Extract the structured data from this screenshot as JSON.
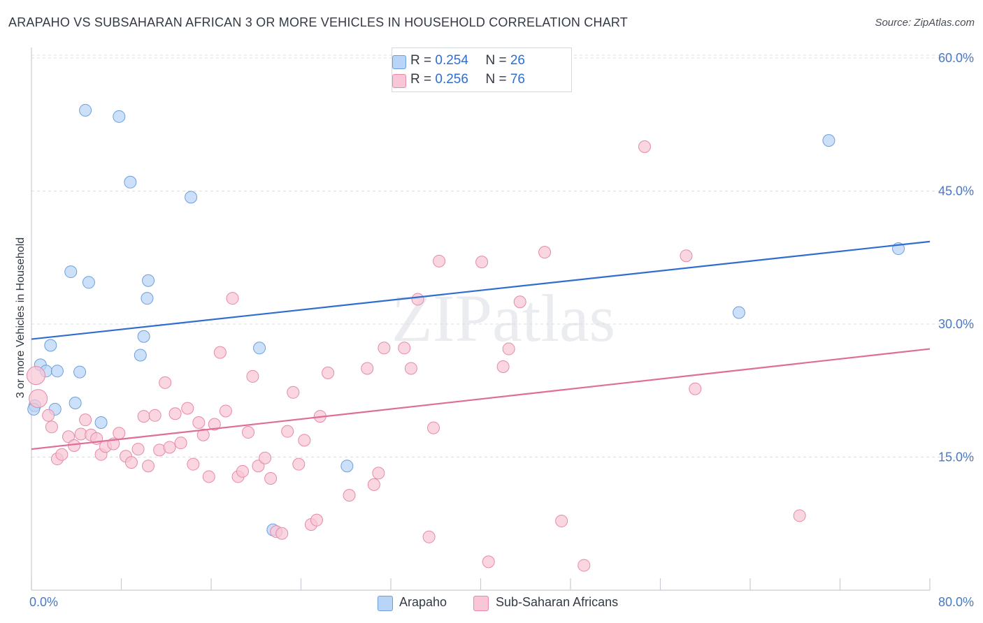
{
  "title": "ARAPAHO VS SUBSAHARAN AFRICAN 3 OR MORE VEHICLES IN HOUSEHOLD CORRELATION CHART",
  "source": "Source: ZipAtlas.com",
  "watermark": "ZIPatlas",
  "legend": {
    "rows": [
      {
        "r_label": "R = ",
        "r_value": "0.254",
        "n_label": "N = ",
        "n_value": "26"
      },
      {
        "r_label": "R = ",
        "r_value": "0.256",
        "n_label": "N = ",
        "n_value": "76"
      }
    ]
  },
  "colors": {
    "arapaho_fill": "#b8d4f6",
    "arapaho_stroke": "#6c9fdb",
    "arapaho_line": "#2f6dd1",
    "subsaharan_fill": "#f8c6d6",
    "subsaharan_stroke": "#e68aa8",
    "subsaharan_line": "#e06c98",
    "tick_text": "#4a78c2",
    "grid": "#dcdfe4"
  },
  "chart_data": {
    "type": "scatter",
    "title": "ARAPAHO VS SUBSAHARAN AFRICAN 3 OR MORE VEHICLES IN HOUSEHOLD CORRELATION CHART",
    "xlabel": "",
    "ylabel": "3 or more Vehicles in Household",
    "xlim": [
      0,
      80
    ],
    "ylim": [
      0,
      60
    ],
    "x_tick_labels": [
      "0.0%",
      "80.0%"
    ],
    "y_tick_values": [
      15,
      30,
      45,
      60
    ],
    "y_tick_labels": [
      "15.0%",
      "30.0%",
      "45.0%",
      "60.0%"
    ],
    "grid": true,
    "legend_position": "bottom",
    "series": [
      {
        "name": "Arapaho",
        "trend": {
          "x": [
            0,
            80
          ],
          "y": [
            28.3,
            39.3
          ]
        },
        "points": [
          {
            "x": 4.8,
            "y": 54.1
          },
          {
            "x": 7.8,
            "y": 53.4
          },
          {
            "x": 8.8,
            "y": 46.0
          },
          {
            "x": 14.2,
            "y": 44.3
          },
          {
            "x": 3.5,
            "y": 35.9
          },
          {
            "x": 5.1,
            "y": 34.7
          },
          {
            "x": 10.4,
            "y": 34.9
          },
          {
            "x": 10.3,
            "y": 32.9
          },
          {
            "x": 10.0,
            "y": 28.6
          },
          {
            "x": 1.7,
            "y": 27.6
          },
          {
            "x": 9.7,
            "y": 26.5
          },
          {
            "x": 20.3,
            "y": 27.3
          },
          {
            "x": 0.8,
            "y": 25.4
          },
          {
            "x": 1.3,
            "y": 24.7
          },
          {
            "x": 2.3,
            "y": 24.7
          },
          {
            "x": 4.3,
            "y": 24.6
          },
          {
            "x": 3.9,
            "y": 21.1
          },
          {
            "x": 0.3,
            "y": 20.8
          },
          {
            "x": 2.1,
            "y": 20.4
          },
          {
            "x": 0.2,
            "y": 20.4
          },
          {
            "x": 6.2,
            "y": 18.9
          },
          {
            "x": 28.1,
            "y": 14.0
          },
          {
            "x": 21.5,
            "y": 6.8
          },
          {
            "x": 71.0,
            "y": 50.7
          },
          {
            "x": 77.2,
            "y": 38.5
          },
          {
            "x": 63.0,
            "y": 31.3
          }
        ]
      },
      {
        "name": "Sub-Saharan Africans",
        "trend": {
          "x": [
            0,
            80
          ],
          "y": [
            15.9,
            27.2
          ]
        },
        "points": [
          {
            "x": 0.4,
            "y": 24.2
          },
          {
            "x": 0.6,
            "y": 21.6
          },
          {
            "x": 1.5,
            "y": 19.7
          },
          {
            "x": 1.8,
            "y": 18.4
          },
          {
            "x": 2.3,
            "y": 14.8
          },
          {
            "x": 2.7,
            "y": 15.3
          },
          {
            "x": 3.3,
            "y": 17.3
          },
          {
            "x": 3.8,
            "y": 16.3
          },
          {
            "x": 4.4,
            "y": 17.6
          },
          {
            "x": 4.8,
            "y": 19.2
          },
          {
            "x": 5.3,
            "y": 17.5
          },
          {
            "x": 5.8,
            "y": 17.1
          },
          {
            "x": 6.2,
            "y": 15.3
          },
          {
            "x": 6.6,
            "y": 16.2
          },
          {
            "x": 7.3,
            "y": 16.5
          },
          {
            "x": 7.8,
            "y": 17.7
          },
          {
            "x": 8.4,
            "y": 15.1
          },
          {
            "x": 8.9,
            "y": 14.4
          },
          {
            "x": 9.5,
            "y": 15.9
          },
          {
            "x": 10.0,
            "y": 19.6
          },
          {
            "x": 10.4,
            "y": 14.0
          },
          {
            "x": 11.0,
            "y": 19.7
          },
          {
            "x": 11.4,
            "y": 15.8
          },
          {
            "x": 11.9,
            "y": 23.4
          },
          {
            "x": 12.3,
            "y": 16.1
          },
          {
            "x": 12.8,
            "y": 19.9
          },
          {
            "x": 13.3,
            "y": 16.6
          },
          {
            "x": 13.9,
            "y": 20.5
          },
          {
            "x": 14.4,
            "y": 14.2
          },
          {
            "x": 14.9,
            "y": 18.9
          },
          {
            "x": 15.3,
            "y": 17.5
          },
          {
            "x": 15.8,
            "y": 12.8
          },
          {
            "x": 16.3,
            "y": 18.7
          },
          {
            "x": 16.8,
            "y": 26.8
          },
          {
            "x": 17.3,
            "y": 20.2
          },
          {
            "x": 17.9,
            "y": 32.9
          },
          {
            "x": 18.4,
            "y": 12.8
          },
          {
            "x": 18.8,
            "y": 13.4
          },
          {
            "x": 19.3,
            "y": 17.8
          },
          {
            "x": 19.7,
            "y": 24.1
          },
          {
            "x": 20.2,
            "y": 14.0
          },
          {
            "x": 20.8,
            "y": 14.9
          },
          {
            "x": 21.3,
            "y": 12.6
          },
          {
            "x": 21.8,
            "y": 6.6
          },
          {
            "x": 22.3,
            "y": 6.4
          },
          {
            "x": 22.8,
            "y": 17.9
          },
          {
            "x": 23.3,
            "y": 22.3
          },
          {
            "x": 23.8,
            "y": 14.2
          },
          {
            "x": 24.3,
            "y": 16.9
          },
          {
            "x": 24.9,
            "y": 7.4
          },
          {
            "x": 25.4,
            "y": 7.9
          },
          {
            "x": 25.7,
            "y": 19.6
          },
          {
            "x": 26.4,
            "y": 24.5
          },
          {
            "x": 28.3,
            "y": 10.7
          },
          {
            "x": 29.9,
            "y": 25.0
          },
          {
            "x": 30.5,
            "y": 11.9
          },
          {
            "x": 30.9,
            "y": 13.2
          },
          {
            "x": 31.4,
            "y": 27.3
          },
          {
            "x": 33.2,
            "y": 27.3
          },
          {
            "x": 33.8,
            "y": 25.0
          },
          {
            "x": 34.4,
            "y": 32.8
          },
          {
            "x": 35.4,
            "y": 6.0
          },
          {
            "x": 35.8,
            "y": 18.3
          },
          {
            "x": 36.3,
            "y": 37.1
          },
          {
            "x": 40.1,
            "y": 37.0
          },
          {
            "x": 40.7,
            "y": 3.2
          },
          {
            "x": 42.0,
            "y": 25.2
          },
          {
            "x": 42.5,
            "y": 27.2
          },
          {
            "x": 43.5,
            "y": 32.5
          },
          {
            "x": 45.7,
            "y": 38.1
          },
          {
            "x": 47.2,
            "y": 7.8
          },
          {
            "x": 49.2,
            "y": 2.8
          },
          {
            "x": 54.6,
            "y": 50.0
          },
          {
            "x": 58.3,
            "y": 37.7
          },
          {
            "x": 59.1,
            "y": 22.7
          },
          {
            "x": 68.4,
            "y": 8.4
          }
        ]
      }
    ]
  }
}
